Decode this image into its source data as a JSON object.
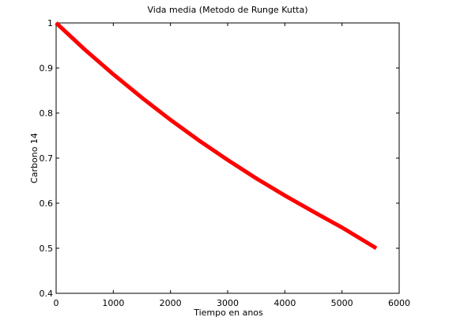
{
  "chart_data": {
    "type": "line",
    "title": "Vida media (Metodo de Runge Kutta)",
    "xlabel": "Tiempo en anos",
    "ylabel": "Carbono 14",
    "xlim": [
      0,
      6000
    ],
    "ylim": [
      0.4,
      1.0
    ],
    "x_ticks": [
      0,
      1000,
      2000,
      3000,
      4000,
      5000,
      6000
    ],
    "y_ticks": [
      0.4,
      0.5,
      0.6,
      0.7,
      0.8,
      0.9,
      1.0
    ],
    "x_tick_labels": [
      "0",
      "1000",
      "2000",
      "3000",
      "4000",
      "5000",
      "6000"
    ],
    "y_tick_labels": [
      "0.4",
      "0.5",
      "0.6",
      "0.7",
      "0.8",
      "0.9",
      "1"
    ],
    "grid": false,
    "legend": "none",
    "series": [
      {
        "color": "#ff0000",
        "x": [
          0,
          500,
          1000,
          1500,
          2000,
          2500,
          3000,
          3500,
          4000,
          4500,
          5000,
          5600
        ],
        "y": [
          1.0,
          0.941,
          0.886,
          0.834,
          0.785,
          0.739,
          0.696,
          0.655,
          0.617,
          0.581,
          0.546,
          0.5
        ]
      }
    ]
  }
}
